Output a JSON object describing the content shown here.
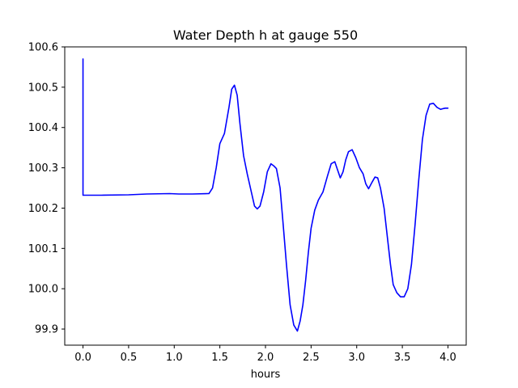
{
  "chart_data": {
    "type": "line",
    "title": "Water Depth h at gauge 550",
    "xlabel": "hours",
    "ylabel": "",
    "xlim": [
      -0.2,
      4.2
    ],
    "ylim": [
      99.86,
      100.6
    ],
    "x_ticks": [
      0.0,
      0.5,
      1.0,
      1.5,
      2.0,
      2.5,
      3.0,
      3.5,
      4.0
    ],
    "x_tick_labels": [
      "0.0",
      "0.5",
      "1.0",
      "1.5",
      "2.0",
      "2.5",
      "3.0",
      "3.5",
      "4.0"
    ],
    "y_ticks": [
      99.9,
      100.0,
      100.1,
      100.2,
      100.3,
      100.4,
      100.5,
      100.6
    ],
    "y_tick_labels": [
      "99.9",
      "100.0",
      "100.1",
      "100.2",
      "100.3",
      "100.4",
      "100.5",
      "100.6"
    ],
    "grid": false,
    "series": [
      {
        "color": "#0000ff",
        "x": [
          0.0,
          0.0,
          0.0,
          0.2,
          0.5,
          0.7,
          0.95,
          1.05,
          1.2,
          1.38,
          1.42,
          1.46,
          1.5,
          1.55,
          1.6,
          1.63,
          1.66,
          1.69,
          1.72,
          1.76,
          1.8,
          1.85,
          1.88,
          1.91,
          1.94,
          1.98,
          2.02,
          2.06,
          2.09,
          2.12,
          2.16,
          2.19,
          2.23,
          2.27,
          2.31,
          2.35,
          2.38,
          2.41,
          2.44,
          2.47,
          2.5,
          2.54,
          2.58,
          2.63,
          2.68,
          2.72,
          2.76,
          2.79,
          2.82,
          2.85,
          2.88,
          2.91,
          2.95,
          2.99,
          3.03,
          3.07,
          3.1,
          3.13,
          3.17,
          3.2,
          3.23,
          3.26,
          3.3,
          3.34,
          3.37,
          3.4,
          3.44,
          3.48,
          3.52,
          3.56,
          3.6,
          3.64,
          3.68,
          3.72,
          3.76,
          3.8,
          3.84,
          3.88,
          3.92,
          3.95,
          3.97,
          4.0
        ],
        "y": [
          100.57,
          100.57,
          100.232,
          100.232,
          100.233,
          100.235,
          100.236,
          100.235,
          100.235,
          100.236,
          100.25,
          100.3,
          100.36,
          100.385,
          100.45,
          100.495,
          100.505,
          100.48,
          100.41,
          100.33,
          100.285,
          100.235,
          100.205,
          100.198,
          100.205,
          100.24,
          100.29,
          100.31,
          100.305,
          100.298,
          100.25,
          100.17,
          100.06,
          99.96,
          99.91,
          99.895,
          99.92,
          99.96,
          100.02,
          100.09,
          100.15,
          100.195,
          100.22,
          100.24,
          100.28,
          100.31,
          100.315,
          100.295,
          100.275,
          100.29,
          100.32,
          100.34,
          100.345,
          100.325,
          100.3,
          100.285,
          100.26,
          100.248,
          100.265,
          100.277,
          100.275,
          100.25,
          100.2,
          100.12,
          100.06,
          100.01,
          99.99,
          99.98,
          99.98,
          100.0,
          100.06,
          100.16,
          100.27,
          100.37,
          100.43,
          100.458,
          100.46,
          100.45,
          100.445,
          100.447,
          100.448,
          100.448
        ]
      }
    ]
  }
}
